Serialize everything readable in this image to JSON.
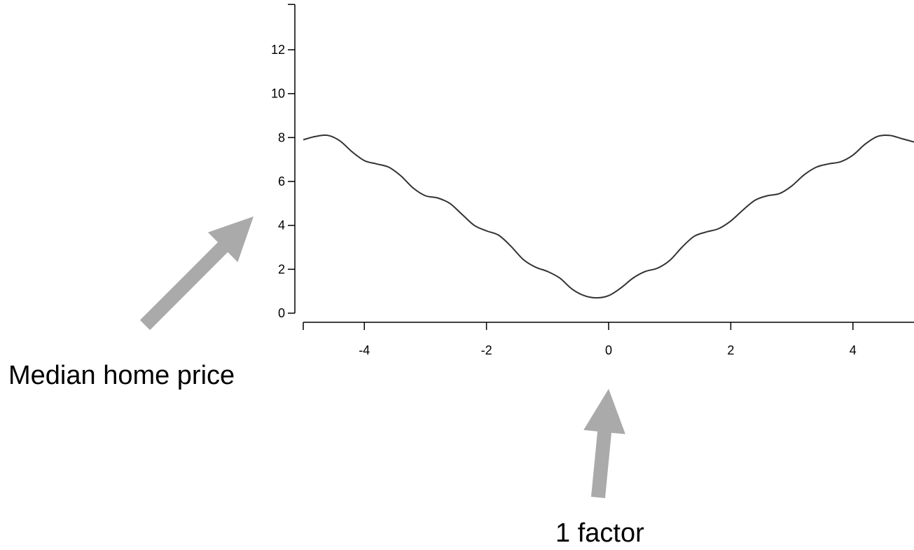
{
  "chart_data": {
    "type": "line",
    "title": "",
    "xlabel": "",
    "ylabel": "",
    "xlim": [
      -5,
      5
    ],
    "ylim": [
      0,
      14
    ],
    "xticks": [
      -4,
      -2,
      0,
      2,
      4
    ],
    "yticks": [
      0,
      2,
      4,
      6,
      8,
      10,
      12
    ],
    "grid": false,
    "legend": "none",
    "line_color": "#333333",
    "series": [
      {
        "x": [
          -5,
          -4.8,
          -4.6,
          -4.4,
          -4.2,
          -4.0,
          -3.8,
          -3.6,
          -3.4,
          -3.2,
          -3.0,
          -2.8,
          -2.6,
          -2.4,
          -2.2,
          -2.0,
          -1.8,
          -1.6,
          -1.4,
          -1.2,
          -1.0,
          -0.8,
          -0.6,
          -0.4,
          -0.2,
          0,
          0.2,
          0.4,
          0.6,
          0.8,
          1.0,
          1.2,
          1.4,
          1.6,
          1.8,
          2.0,
          2.2,
          2.4,
          2.6,
          2.8,
          3.0,
          3.2,
          3.4,
          3.6,
          3.8,
          4.0,
          4.2,
          4.4,
          4.6,
          4.8,
          5.0
        ],
        "y": [
          7.9,
          8.05,
          8.1,
          7.85,
          7.35,
          6.95,
          6.8,
          6.65,
          6.25,
          5.7,
          5.35,
          5.25,
          5.0,
          4.5,
          4.0,
          3.75,
          3.55,
          3.05,
          2.45,
          2.1,
          1.9,
          1.6,
          1.1,
          0.8,
          0.7,
          0.8,
          1.15,
          1.6,
          1.9,
          2.05,
          2.4,
          3.0,
          3.5,
          3.7,
          3.85,
          4.2,
          4.7,
          5.15,
          5.35,
          5.45,
          5.8,
          6.3,
          6.65,
          6.8,
          6.9,
          7.2,
          7.7,
          8.05,
          8.1,
          7.95,
          7.8
        ]
      }
    ],
    "annotations": [
      {
        "text": "Median home price",
        "arrow_color": "#aaaaaa"
      },
      {
        "text": "1 factor",
        "arrow_color": "#aaaaaa"
      }
    ]
  }
}
